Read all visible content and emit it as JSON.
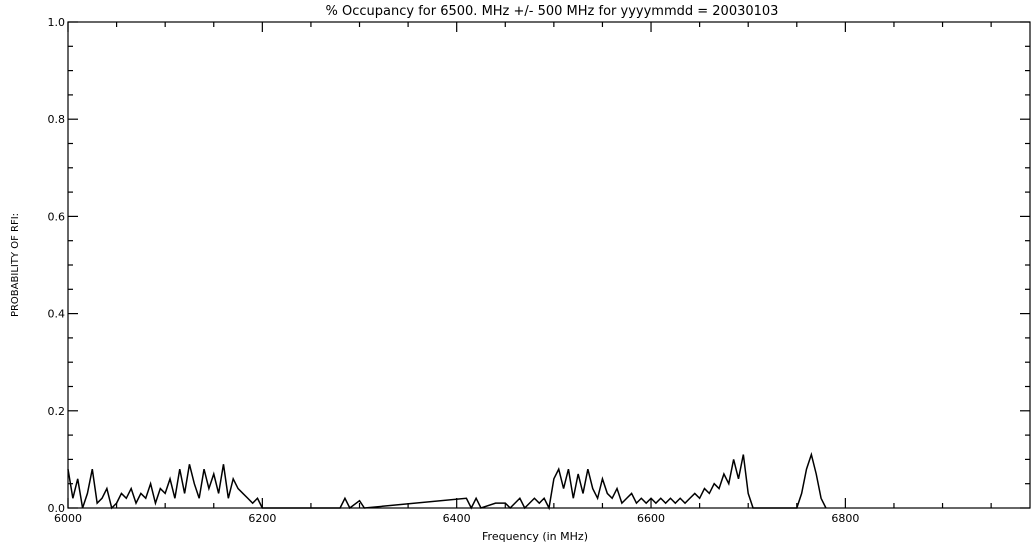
{
  "chart_data": {
    "type": "line",
    "title": "% Occupancy for 6500. MHz +/- 500 MHz for yyyymmdd = 20030103",
    "x_label": "Frequency (in MHz)",
    "y_label": "PROBABILITY OF RFI:",
    "xlim": [
      6000,
      6990
    ],
    "ylim": [
      0,
      1
    ],
    "xticks": [
      6000,
      6200,
      6400,
      6600,
      6800
    ],
    "yticks": [
      {
        "value": 0,
        "label": "0.0"
      },
      0.2,
      0.4,
      0.6,
      0.8,
      {
        "value": 1,
        "label": "1.0"
      }
    ],
    "xminorticks": [
      6050,
      6100,
      6150,
      6250,
      6300,
      6350,
      6450,
      6500,
      6550,
      6650,
      6700,
      6750,
      6850,
      6900,
      6950
    ],
    "yminorticks": [
      0.05,
      0.1,
      0.15,
      0.25,
      0.3,
      0.35,
      0.45,
      0.5,
      0.55,
      0.65,
      0.7,
      0.75,
      0.85,
      0.9,
      0.95
    ],
    "series": [
      {
        "color": "#000000",
        "x": [
          6000,
          6005,
          6010,
          6015,
          6020,
          6025,
          6030,
          6035,
          6040,
          6045,
          6050,
          6055,
          6060,
          6065,
          6070,
          6075,
          6080,
          6085,
          6090,
          6095,
          6100,
          6105,
          6110,
          6115,
          6120,
          6125,
          6130,
          6135,
          6140,
          6145,
          6150,
          6155,
          6160,
          6165,
          6170,
          6175,
          6180,
          6185,
          6190,
          6195,
          6200,
          6280,
          6285,
          6290,
          6300,
          6305,
          6410,
          6415,
          6420,
          6425,
          6440,
          6450,
          6455,
          6465,
          6470,
          6480,
          6485,
          6490,
          6495,
          6500,
          6505,
          6510,
          6515,
          6520,
          6525,
          6530,
          6535,
          6540,
          6545,
          6550,
          6555,
          6560,
          6565,
          6570,
          6575,
          6580,
          6585,
          6590,
          6595,
          6600,
          6605,
          6610,
          6615,
          6620,
          6625,
          6630,
          6635,
          6640,
          6645,
          6650,
          6655,
          6660,
          6665,
          6670,
          6675,
          6680,
          6685,
          6690,
          6695,
          6700,
          6705,
          6750,
          6755,
          6760,
          6765,
          6770,
          6775,
          6780
        ],
        "values": [
          0.08,
          0.02,
          0.06,
          0,
          0.03,
          0.08,
          0.01,
          0.02,
          0.04,
          0,
          0.01,
          0.03,
          0.02,
          0.04,
          0.01,
          0.03,
          0.02,
          0.05,
          0.01,
          0.04,
          0.03,
          0.06,
          0.02,
          0.08,
          0.03,
          0.09,
          0.05,
          0.02,
          0.08,
          0.04,
          0.07,
          0.03,
          0.09,
          0.02,
          0.06,
          0.04,
          0.03,
          0.02,
          0.01,
          0.02,
          0,
          0,
          0.02,
          0,
          0.015,
          0,
          0.02,
          0,
          0.02,
          0,
          0.01,
          0.01,
          0,
          0.02,
          0,
          0.02,
          0.01,
          0.02,
          0,
          0.06,
          0.08,
          0.04,
          0.08,
          0.02,
          0.07,
          0.03,
          0.08,
          0.04,
          0.02,
          0.06,
          0.03,
          0.02,
          0.04,
          0.01,
          0.02,
          0.03,
          0.01,
          0.02,
          0.01,
          0.02,
          0.01,
          0.02,
          0.01,
          0.02,
          0.01,
          0.02,
          0.01,
          0.02,
          0.03,
          0.02,
          0.04,
          0.03,
          0.05,
          0.04,
          0.07,
          0.05,
          0.1,
          0.06,
          0.11,
          0.03,
          0,
          0,
          0.03,
          0.08,
          0.11,
          0.07,
          0.02,
          0
        ]
      }
    ]
  }
}
